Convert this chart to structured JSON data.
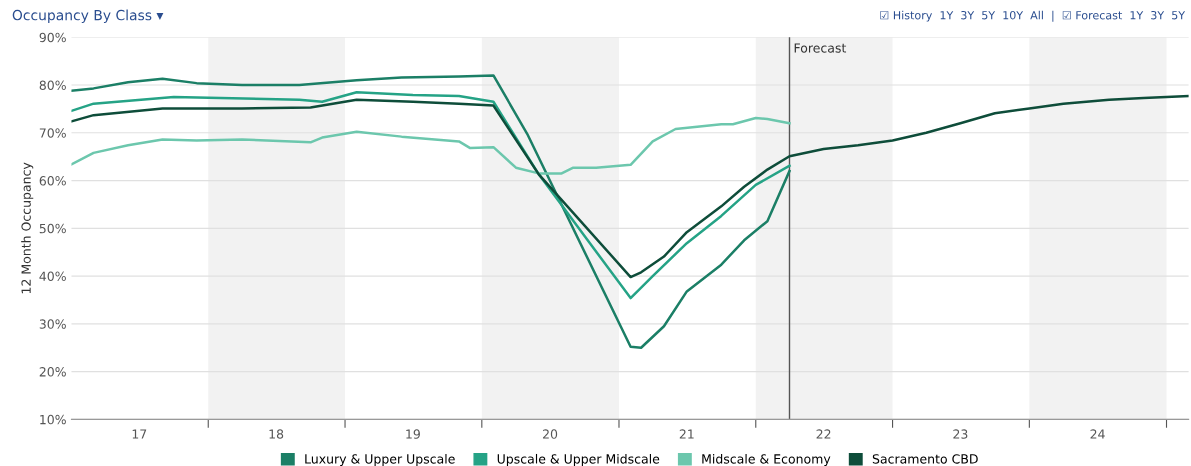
{
  "chart_data": {
    "type": "line",
    "title": "Occupancy By Class ▾",
    "ylabel": "12 Month Occupancy",
    "annotations": [
      "☑ History  1Y  3Y  5Y  10Y  All  |  ☑ Forecast  1Y  3Y  5Y"
    ],
    "xlim": [
      "2017-01",
      "2025-03"
    ],
    "ylim": [
      10,
      90
    ],
    "xticks": [
      {
        "value": "2017-07",
        "label": "17"
      },
      {
        "value": "2018-07",
        "label": "18"
      },
      {
        "value": "2019-07",
        "label": "19"
      },
      {
        "value": "2020-07",
        "label": "20"
      },
      {
        "value": "2021-07",
        "label": "21"
      },
      {
        "value": "2022-07",
        "label": "22"
      },
      {
        "value": "2023-07",
        "label": "23"
      },
      {
        "value": "2024-07",
        "label": "24"
      },
      {
        "value": "2018-01",
        "label": null
      },
      {
        "value": "2019-01",
        "label": null
      },
      {
        "value": "2020-01",
        "label": null
      },
      {
        "value": "2021-01",
        "label": null
      },
      {
        "value": "2022-01",
        "label": null
      },
      {
        "value": "2023-01",
        "label": null
      },
      {
        "value": "2024-01",
        "label": null
      },
      {
        "value": "2025-01",
        "label": null
      }
    ],
    "yticks": [
      {
        "value": 10,
        "label": "10%"
      },
      {
        "value": 20,
        "label": "20%"
      },
      {
        "value": 30,
        "label": "30%"
      },
      {
        "value": 40,
        "label": "40%"
      },
      {
        "value": 50,
        "label": "50%"
      },
      {
        "value": 60,
        "label": "60%"
      },
      {
        "value": 70,
        "label": "70%"
      },
      {
        "value": 80,
        "label": "80%"
      },
      {
        "value": 90,
        "label": "90%"
      }
    ],
    "grid": "y",
    "legend": "bottom",
    "line_style": "solid",
    "marker": "none",
    "ref_lines": [
      {
        "axis": "x",
        "value": "2022-04",
        "label": "Forecast",
        "color": "#555555"
      }
    ],
    "bands": [
      {
        "axis": "x",
        "from": "2018-01",
        "to": "2019-01",
        "label": null,
        "color": "#f2f2f2"
      },
      {
        "axis": "x",
        "from": "2020-01",
        "to": "2021-01",
        "label": null,
        "color": "#f2f2f2"
      },
      {
        "axis": "x",
        "from": "2022-01",
        "to": "2023-01",
        "label": null,
        "color": "#f2f2f2"
      },
      {
        "axis": "x",
        "from": "2024-01",
        "to": "2025-01",
        "label": null,
        "color": "#f2f2f2"
      }
    ],
    "series": [
      {
        "name": "Luxury & Upper Upscale",
        "color": "#1b7f66",
        "x": [
          "2017-01",
          "2017-03",
          "2017-06",
          "2017-09",
          "2017-12",
          "2018-04",
          "2018-09",
          "2019-02",
          "2019-06",
          "2019-11",
          "2020-02",
          "2020-05",
          "2021-02",
          "2021-03",
          "2021-05",
          "2021-07",
          "2021-10",
          "2021-12",
          "2022-02",
          "2022-04"
        ],
        "values": [
          78.8,
          79.3,
          80.6,
          81.3,
          80.4,
          80.0,
          80.0,
          81.0,
          81.6,
          81.8,
          82.0,
          69.8,
          25.2,
          25.0,
          29.5,
          36.8,
          42.4,
          47.5,
          51.5,
          62.0
        ]
      },
      {
        "name": "Upscale & Upper Midscale",
        "color": "#25a386",
        "x": [
          "2017-01",
          "2017-03",
          "2017-10",
          "2018-09",
          "2018-11",
          "2019-02",
          "2019-07",
          "2019-11",
          "2020-02",
          "2020-06",
          "2021-02",
          "2021-04",
          "2021-07",
          "2021-10",
          "2022-01",
          "2022-04"
        ],
        "values": [
          74.6,
          76.1,
          77.5,
          76.9,
          76.5,
          78.5,
          77.9,
          77.7,
          76.5,
          61.3,
          35.4,
          40.0,
          46.9,
          52.6,
          59.1,
          63.1
        ]
      },
      {
        "name": "Midscale & Economy",
        "color": "#6cc7ad",
        "x": [
          "2017-01",
          "2017-03",
          "2017-06",
          "2017-09",
          "2017-12",
          "2018-04",
          "2018-10",
          "2018-11",
          "2019-02",
          "2019-06",
          "2019-11",
          "2019-12",
          "2020-02",
          "2020-04",
          "2020-06",
          "2020-08",
          "2020-09",
          "2020-11",
          "2021-02",
          "2021-04",
          "2021-06",
          "2021-10",
          "2021-11",
          "2022-01",
          "2022-02",
          "2022-04"
        ],
        "values": [
          63.4,
          65.8,
          67.4,
          68.6,
          68.4,
          68.6,
          68.0,
          69.0,
          70.2,
          69.2,
          68.2,
          66.8,
          67.0,
          62.7,
          61.5,
          61.5,
          62.7,
          62.7,
          63.3,
          68.2,
          70.8,
          71.8,
          71.8,
          73.1,
          72.9,
          72.0
        ]
      },
      {
        "name": "Sacramento CBD",
        "color": "#0e4d3a",
        "x": [
          "2017-01",
          "2017-03",
          "2017-09",
          "2018-04",
          "2018-10",
          "2019-02",
          "2019-07",
          "2019-11",
          "2020-02",
          "2020-06",
          "2021-02",
          "2021-03",
          "2021-05",
          "2021-07",
          "2021-10",
          "2021-12",
          "2022-02",
          "2022-04",
          "2022-07",
          "2022-10",
          "2023-01",
          "2023-04",
          "2023-07",
          "2023-10",
          "2024-01",
          "2024-04",
          "2024-08",
          "2024-11",
          "2025-03"
        ],
        "values": [
          72.4,
          73.7,
          75.1,
          75.1,
          75.3,
          76.9,
          76.5,
          76.1,
          75.7,
          61.3,
          39.8,
          40.8,
          44.1,
          49.2,
          54.6,
          58.7,
          62.3,
          65.1,
          66.6,
          67.4,
          68.4,
          70.0,
          72.0,
          74.1,
          75.1,
          76.1,
          76.9,
          77.3,
          77.7
        ]
      }
    ]
  }
}
